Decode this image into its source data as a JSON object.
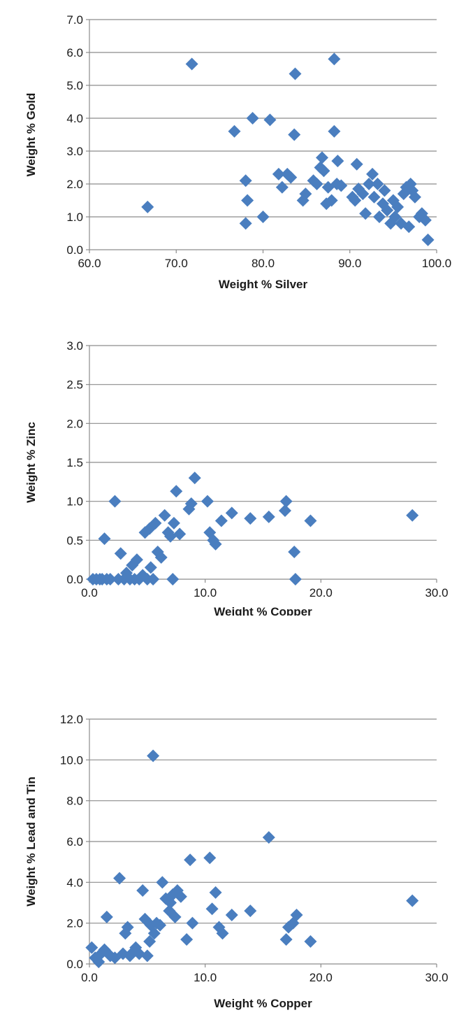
{
  "colors": {
    "marker": "#4a7ebf",
    "grid": "#8c8c8c",
    "axis": "#8c8c8c",
    "text": "#1a1a1a"
  },
  "chart_data": [
    {
      "type": "scatter",
      "title": "",
      "xlabel": "Weight % Silver",
      "ylabel": "Weight % Gold",
      "xlim": [
        60,
        100
      ],
      "ylim": [
        0,
        7
      ],
      "x_ticks": [
        "60.0",
        "70.0",
        "80.0",
        "90.0",
        "100.0"
      ],
      "y_ticks": [
        "0.0",
        "1.0",
        "2.0",
        "3.0",
        "4.0",
        "5.0",
        "6.0",
        "7.0"
      ],
      "grid": "horizontal",
      "legend": "none",
      "marker": "diamond",
      "points": [
        [
          66.7,
          1.3
        ],
        [
          71.8,
          5.65
        ],
        [
          76.7,
          3.6
        ],
        [
          78.0,
          2.1
        ],
        [
          78.2,
          1.5
        ],
        [
          78.0,
          0.8
        ],
        [
          78.8,
          4.0
        ],
        [
          80.0,
          1.0
        ],
        [
          80.8,
          3.95
        ],
        [
          81.8,
          2.3
        ],
        [
          82.2,
          1.9
        ],
        [
          82.8,
          2.3
        ],
        [
          83.2,
          2.2
        ],
        [
          83.6,
          3.5
        ],
        [
          83.7,
          5.35
        ],
        [
          84.6,
          1.5
        ],
        [
          84.9,
          1.7
        ],
        [
          85.8,
          2.1
        ],
        [
          86.2,
          2.0
        ],
        [
          86.6,
          2.5
        ],
        [
          86.8,
          2.8
        ],
        [
          87.0,
          2.4
        ],
        [
          87.3,
          1.4
        ],
        [
          87.5,
          1.9
        ],
        [
          87.9,
          1.5
        ],
        [
          88.2,
          5.8
        ],
        [
          88.2,
          3.6
        ],
        [
          88.5,
          2.0
        ],
        [
          88.6,
          2.7
        ],
        [
          89.0,
          1.95
        ],
        [
          90.3,
          1.6
        ],
        [
          90.6,
          1.5
        ],
        [
          90.8,
          2.6
        ],
        [
          91.0,
          1.85
        ],
        [
          91.5,
          1.7
        ],
        [
          91.8,
          1.1
        ],
        [
          92.2,
          2.0
        ],
        [
          92.6,
          2.3
        ],
        [
          92.8,
          1.6
        ],
        [
          93.2,
          2.0
        ],
        [
          93.4,
          1.0
        ],
        [
          93.8,
          1.4
        ],
        [
          94.0,
          1.8
        ],
        [
          94.3,
          1.2
        ],
        [
          94.7,
          0.8
        ],
        [
          95.0,
          1.5
        ],
        [
          95.2,
          1.0
        ],
        [
          95.5,
          1.3
        ],
        [
          95.9,
          0.8
        ],
        [
          96.2,
          1.7
        ],
        [
          96.5,
          1.9
        ],
        [
          96.8,
          0.7
        ],
        [
          97.0,
          2.0
        ],
        [
          97.2,
          1.8
        ],
        [
          97.5,
          1.6
        ],
        [
          98.0,
          1.0
        ],
        [
          98.3,
          1.1
        ],
        [
          98.7,
          0.9
        ],
        [
          99.0,
          0.3
        ]
      ]
    },
    {
      "type": "scatter",
      "title": "",
      "xlabel": "Weight % Copper",
      "ylabel": "Weight % Zinc",
      "xlim": [
        0,
        30
      ],
      "ylim": [
        0,
        3
      ],
      "x_ticks": [
        "0.0",
        "10.0",
        "20.0",
        "30.0"
      ],
      "y_ticks": [
        "0.0",
        "0.5",
        "1.0",
        "1.5",
        "2.0",
        "2.5",
        "3.0"
      ],
      "grid": "horizontal",
      "legend": "none",
      "marker": "diamond",
      "points": [
        [
          0.3,
          0.0
        ],
        [
          0.6,
          0.0
        ],
        [
          0.9,
          0.0
        ],
        [
          1.1,
          0.0
        ],
        [
          1.3,
          0.52
        ],
        [
          1.5,
          0.0
        ],
        [
          1.8,
          0.0
        ],
        [
          2.2,
          1.0
        ],
        [
          2.5,
          0.0
        ],
        [
          2.7,
          0.33
        ],
        [
          3.0,
          0.0
        ],
        [
          3.2,
          0.08
        ],
        [
          3.5,
          0.0
        ],
        [
          3.7,
          0.18
        ],
        [
          3.9,
          0.0
        ],
        [
          4.1,
          0.25
        ],
        [
          4.3,
          0.0
        ],
        [
          4.6,
          0.05
        ],
        [
          4.8,
          0.6
        ],
        [
          5.0,
          0.0
        ],
        [
          5.2,
          0.65
        ],
        [
          5.3,
          0.15
        ],
        [
          5.5,
          0.0
        ],
        [
          5.7,
          0.72
        ],
        [
          5.9,
          0.35
        ],
        [
          6.2,
          0.28
        ],
        [
          6.5,
          0.82
        ],
        [
          6.8,
          0.6
        ],
        [
          7.0,
          0.55
        ],
        [
          7.2,
          0.0
        ],
        [
          7.3,
          0.72
        ],
        [
          7.5,
          1.13
        ],
        [
          7.8,
          0.58
        ],
        [
          8.6,
          0.9
        ],
        [
          8.8,
          0.97
        ],
        [
          9.1,
          1.3
        ],
        [
          10.2,
          1.0
        ],
        [
          10.4,
          0.6
        ],
        [
          10.7,
          0.5
        ],
        [
          10.9,
          0.45
        ],
        [
          11.4,
          0.75
        ],
        [
          12.3,
          0.85
        ],
        [
          13.9,
          0.78
        ],
        [
          15.5,
          0.8
        ],
        [
          16.9,
          0.88
        ],
        [
          17.0,
          1.0
        ],
        [
          17.7,
          0.35
        ],
        [
          17.8,
          0.0
        ],
        [
          19.1,
          0.75
        ],
        [
          27.9,
          0.82
        ]
      ]
    },
    {
      "type": "scatter",
      "title": "",
      "xlabel": "Weight % Copper",
      "ylabel": "Weight % Lead and Tin",
      "xlim": [
        0,
        30
      ],
      "ylim": [
        0,
        12
      ],
      "x_ticks": [
        "0.0",
        "10.0",
        "20.0",
        "30.0"
      ],
      "y_ticks": [
        "0.0",
        "2.0",
        "4.0",
        "6.0",
        "8.0",
        "10.0",
        "12.0"
      ],
      "grid": "horizontal",
      "legend": "none",
      "marker": "diamond",
      "points": [
        [
          0.2,
          0.8
        ],
        [
          0.5,
          0.3
        ],
        [
          0.8,
          0.1
        ],
        [
          1.0,
          0.5
        ],
        [
          1.3,
          0.7
        ],
        [
          1.5,
          2.3
        ],
        [
          1.8,
          0.4
        ],
        [
          2.2,
          0.3
        ],
        [
          2.6,
          4.2
        ],
        [
          2.9,
          0.5
        ],
        [
          3.1,
          1.5
        ],
        [
          3.3,
          1.8
        ],
        [
          3.5,
          0.4
        ],
        [
          3.8,
          0.6
        ],
        [
          4.0,
          0.8
        ],
        [
          4.3,
          0.5
        ],
        [
          4.6,
          3.6
        ],
        [
          4.8,
          2.2
        ],
        [
          5.0,
          0.4
        ],
        [
          5.2,
          1.1
        ],
        [
          5.3,
          1.9
        ],
        [
          5.5,
          10.2
        ],
        [
          5.6,
          1.5
        ],
        [
          5.8,
          2.0
        ],
        [
          6.1,
          1.9
        ],
        [
          6.3,
          4.0
        ],
        [
          6.6,
          3.2
        ],
        [
          6.9,
          2.6
        ],
        [
          7.0,
          3.0
        ],
        [
          7.2,
          3.4
        ],
        [
          7.4,
          2.3
        ],
        [
          7.6,
          3.6
        ],
        [
          7.9,
          3.3
        ],
        [
          8.4,
          1.2
        ],
        [
          8.7,
          5.1
        ],
        [
          8.9,
          2.0
        ],
        [
          10.4,
          5.2
        ],
        [
          10.6,
          2.7
        ],
        [
          10.9,
          3.5
        ],
        [
          11.2,
          1.8
        ],
        [
          11.5,
          1.5
        ],
        [
          12.3,
          2.4
        ],
        [
          13.9,
          2.6
        ],
        [
          15.5,
          6.2
        ],
        [
          17.0,
          1.2
        ],
        [
          17.2,
          1.8
        ],
        [
          17.6,
          2.0
        ],
        [
          17.9,
          2.4
        ],
        [
          19.1,
          1.1
        ],
        [
          27.9,
          3.1
        ]
      ]
    }
  ]
}
